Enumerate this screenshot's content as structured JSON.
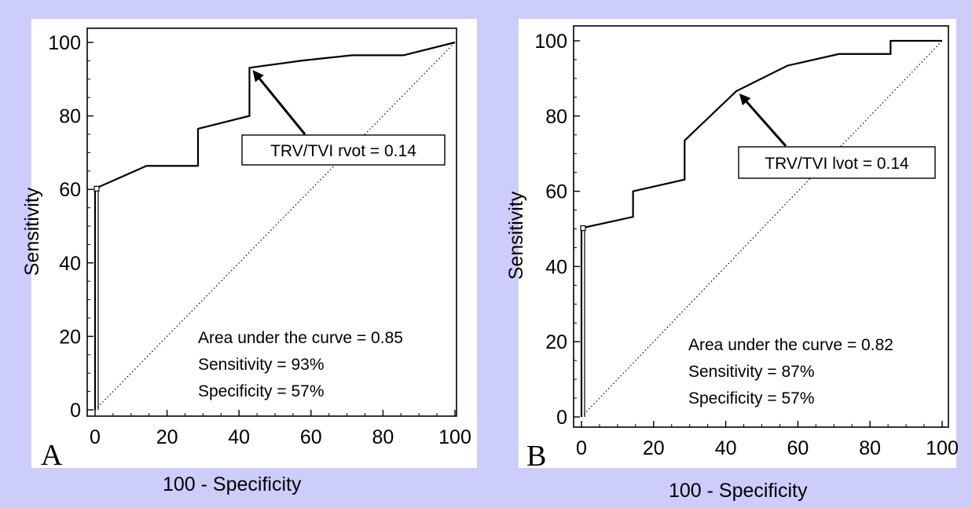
{
  "chart_data": [
    {
      "type": "line",
      "panel_label": "A",
      "xlabel": "100 - Specificity",
      "ylabel": "Sensitivity",
      "xlim": [
        0,
        100
      ],
      "ylim": [
        0,
        100
      ],
      "xticks": [
        0,
        20,
        40,
        60,
        80,
        100
      ],
      "yticks": [
        0,
        20,
        40,
        60,
        80,
        100
      ],
      "series": [
        {
          "role": "roc-curve",
          "x": [
            0,
            0,
            14.3,
            28.6,
            28.6,
            42.9,
            42.9,
            57.1,
            71.4,
            85.7,
            100
          ],
          "y": [
            0,
            60.2,
            66.4,
            66.4,
            76.5,
            80,
            93.1,
            95,
            96.5,
            96.5,
            100
          ]
        },
        {
          "role": "reference-diagonal",
          "x": [
            0,
            100
          ],
          "y": [
            0,
            100
          ]
        }
      ],
      "marker": {
        "x": 0,
        "y": 60.2
      },
      "callout": {
        "text": "TRV/TVI rvot = 0.14",
        "x": 42.9,
        "y": 93.1
      },
      "annotations": [
        "Area under the curve = 0.85",
        "Sensitivity = 93%",
        "Specificity = 57%"
      ]
    },
    {
      "type": "line",
      "panel_label": "B",
      "xlabel": "100 - Specificity",
      "ylabel": "Sensitivity",
      "xlim": [
        0,
        100
      ],
      "ylim": [
        0,
        100
      ],
      "xticks": [
        0,
        20,
        40,
        60,
        80,
        100
      ],
      "yticks": [
        0,
        20,
        40,
        60,
        80,
        100
      ],
      "series": [
        {
          "role": "roc-curve",
          "x": [
            0,
            0,
            14.3,
            14.3,
            28.6,
            28.6,
            42.9,
            57.1,
            71.4,
            85.7,
            85.7,
            100
          ],
          "y": [
            0,
            50.2,
            53.2,
            60,
            63.1,
            73.5,
            86.6,
            93.4,
            96.5,
            96.5,
            100,
            100
          ]
        },
        {
          "role": "reference-diagonal",
          "x": [
            0,
            100
          ],
          "y": [
            0,
            100
          ]
        }
      ],
      "marker": {
        "x": 0,
        "y": 50.2
      },
      "callout": {
        "text": "TRV/TVI lvot = 0.14",
        "x": 42.9,
        "y": 86.6
      },
      "annotations": [
        "Area under the curve = 0.82",
        "Sensitivity = 87%",
        "Specificity = 57%"
      ]
    }
  ]
}
